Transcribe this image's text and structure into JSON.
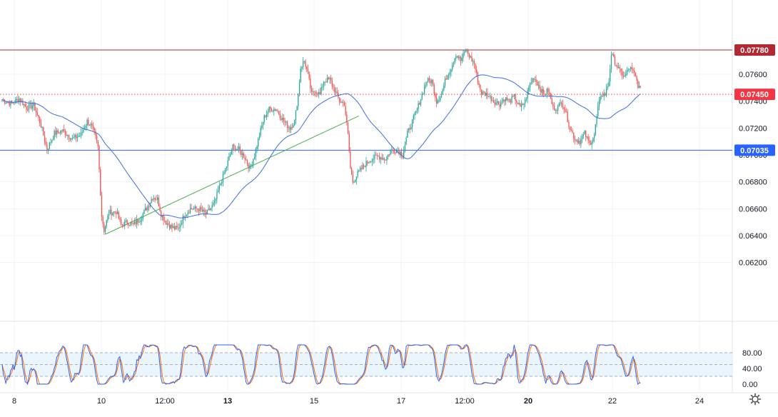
{
  "chart_data": [
    {
      "type": "candlestick",
      "ylim": [
        0.061,
        0.079
      ],
      "y_ticks": [
        "0.06200",
        "0.06400",
        "0.06600",
        "0.06800",
        "0.07000",
        "0.07200",
        "0.07400",
        "0.07600"
      ],
      "x_ticks": [
        "8",
        "10",
        "12:00",
        "13",
        "15",
        "17",
        "12:00",
        "20",
        "22",
        "24"
      ],
      "price_tags": [
        {
          "label": "0.07780",
          "value": 0.0778,
          "color": "#b22833"
        },
        {
          "label": "0.07450",
          "value": 0.0745,
          "color": "#f23645"
        },
        {
          "label": "0.07035",
          "value": 0.07035,
          "color": "#2962ff"
        }
      ],
      "horizontal_lines": [
        {
          "value": 0.0778,
          "color": "#b22833",
          "style": "solid"
        },
        {
          "value": 0.0745,
          "color": "#f23645",
          "style": "dotted"
        },
        {
          "value": 0.07035,
          "color": "#2962ff",
          "style": "solid"
        }
      ],
      "trendline": {
        "color": "#4caf50",
        "from": {
          "bar": 85,
          "price": 0.0641
        },
        "to": {
          "bar": 294,
          "price": 0.0729
        }
      },
      "moving_average_color": "#3d6fe0",
      "up_color": "#26a69a",
      "down_color": "#ef5350",
      "price_path": [
        [
          0,
          0.0741
        ],
        [
          8,
          0.0738
        ],
        [
          14,
          0.0742
        ],
        [
          20,
          0.0735
        ],
        [
          26,
          0.0737
        ],
        [
          32,
          0.0722
        ],
        [
          37,
          0.0704
        ],
        [
          43,
          0.0716
        ],
        [
          50,
          0.0718
        ],
        [
          58,
          0.0712
        ],
        [
          65,
          0.0715
        ],
        [
          70,
          0.0725
        ],
        [
          73,
          0.0722
        ],
        [
          76,
          0.0716
        ],
        [
          79,
          0.0706
        ],
        [
          82,
          0.0655
        ],
        [
          84,
          0.0644
        ],
        [
          88,
          0.0657
        ],
        [
          94,
          0.0658
        ],
        [
          98,
          0.0648
        ],
        [
          103,
          0.065
        ],
        [
          108,
          0.0648
        ],
        [
          114,
          0.0653
        ],
        [
          120,
          0.0662
        ],
        [
          124,
          0.0669
        ],
        [
          128,
          0.0667
        ],
        [
          131,
          0.0656
        ],
        [
          135,
          0.065
        ],
        [
          140,
          0.0646
        ],
        [
          145,
          0.0645
        ],
        [
          150,
          0.0655
        ],
        [
          155,
          0.066
        ],
        [
          162,
          0.066
        ],
        [
          168,
          0.0656
        ],
        [
          175,
          0.0664
        ],
        [
          180,
          0.0679
        ],
        [
          185,
          0.0692
        ],
        [
          190,
          0.0706
        ],
        [
          195,
          0.0704
        ],
        [
          200,
          0.0698
        ],
        [
          204,
          0.069
        ],
        [
          208,
          0.07
        ],
        [
          212,
          0.0715
        ],
        [
          216,
          0.0728
        ],
        [
          220,
          0.0734
        ],
        [
          226,
          0.0734
        ],
        [
          232,
          0.0725
        ],
        [
          237,
          0.072
        ],
        [
          241,
          0.0725
        ],
        [
          244,
          0.0745
        ],
        [
          246,
          0.0765
        ],
        [
          249,
          0.077
        ],
        [
          252,
          0.076
        ],
        [
          255,
          0.0745
        ],
        [
          258,
          0.0748
        ],
        [
          262,
          0.0745
        ],
        [
          265,
          0.0755
        ],
        [
          270,
          0.0756
        ],
        [
          274,
          0.0748
        ],
        [
          278,
          0.074
        ],
        [
          282,
          0.0738
        ],
        [
          285,
          0.0715
        ],
        [
          287,
          0.069
        ],
        [
          289,
          0.068
        ],
        [
          293,
          0.0686
        ],
        [
          298,
          0.0692
        ],
        [
          304,
          0.0697
        ],
        [
          310,
          0.0699
        ],
        [
          316,
          0.0697
        ],
        [
          320,
          0.0703
        ],
        [
          326,
          0.0704
        ],
        [
          330,
          0.07
        ],
        [
          334,
          0.0716
        ],
        [
          338,
          0.0725
        ],
        [
          342,
          0.0734
        ],
        [
          346,
          0.0745
        ],
        [
          350,
          0.0755
        ],
        [
          354,
          0.0755
        ],
        [
          358,
          0.074
        ],
        [
          362,
          0.0745
        ],
        [
          366,
          0.0758
        ],
        [
          370,
          0.0765
        ],
        [
          374,
          0.0775
        ],
        [
          378,
          0.077
        ],
        [
          382,
          0.0778
        ],
        [
          386,
          0.0772
        ],
        [
          389,
          0.0768
        ],
        [
          392,
          0.0755
        ],
        [
          395,
          0.0746
        ],
        [
          400,
          0.0745
        ],
        [
          405,
          0.074
        ],
        [
          410,
          0.0738
        ],
        [
          414,
          0.0742
        ],
        [
          418,
          0.074
        ],
        [
          422,
          0.0743
        ],
        [
          427,
          0.0735
        ],
        [
          431,
          0.074
        ],
        [
          435,
          0.0753
        ],
        [
          438,
          0.0758
        ],
        [
          442,
          0.0752
        ],
        [
          446,
          0.0745
        ],
        [
          450,
          0.0748
        ],
        [
          454,
          0.0735
        ],
        [
          458,
          0.0735
        ],
        [
          461,
          0.074
        ],
        [
          464,
          0.0733
        ],
        [
          468,
          0.072
        ],
        [
          472,
          0.0712
        ],
        [
          476,
          0.071
        ],
        [
          480,
          0.0716
        ],
        [
          484,
          0.0708
        ],
        [
          488,
          0.0715
        ],
        [
          491,
          0.0735
        ],
        [
          494,
          0.0745
        ],
        [
          497,
          0.0745
        ],
        [
          500,
          0.0755
        ],
        [
          502,
          0.0775
        ],
        [
          505,
          0.0769
        ],
        [
          509,
          0.0762
        ],
        [
          513,
          0.0758
        ],
        [
          517,
          0.0765
        ],
        [
          521,
          0.076
        ],
        [
          524,
          0.0752
        ],
        [
          526,
          0.0748
        ]
      ],
      "stochastic": {
        "ylim": [
          0,
          100
        ],
        "y_ticks": [
          "80.00",
          "40.00",
          "0.00"
        ],
        "lines": [
          {
            "value": 80,
            "style": "dashed"
          },
          {
            "value": 50,
            "style": "dashed"
          },
          {
            "value": 20,
            "style": "dashed"
          }
        ],
        "k_color": "#2962ff",
        "d_color": "#ff6d00",
        "band_color": "#e3f2fd"
      }
    }
  ]
}
